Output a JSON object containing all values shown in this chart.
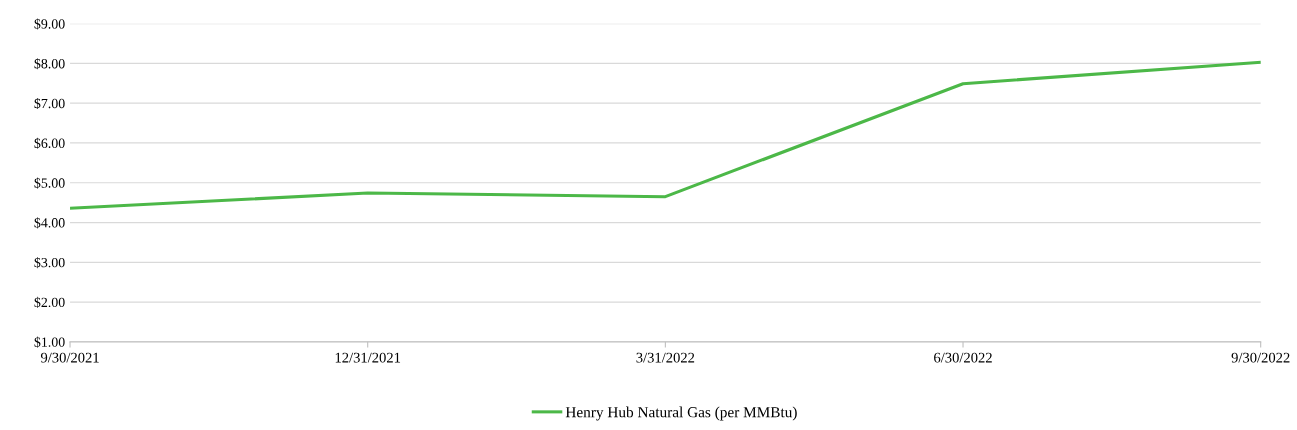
{
  "chart_data": {
    "type": "line",
    "categories": [
      "9/30/2021",
      "12/31/2021",
      "3/31/2022",
      "6/30/2022",
      "9/30/2022"
    ],
    "series": [
      {
        "name": "Henry Hub Natural Gas (per MMBtu)",
        "color": "#4cb848",
        "values": [
          4.36,
          4.74,
          4.65,
          7.49,
          8.03
        ]
      }
    ],
    "ylim": [
      1,
      9
    ],
    "yticks": [
      {
        "value": 1,
        "label": "$1.00"
      },
      {
        "value": 2,
        "label": "$2.00"
      },
      {
        "value": 3,
        "label": "$3.00"
      },
      {
        "value": 4,
        "label": "$4.00"
      },
      {
        "value": 5,
        "label": "$5.00"
      },
      {
        "value": 6,
        "label": "$6.00"
      },
      {
        "value": 7,
        "label": "$7.00"
      },
      {
        "value": 8,
        "label": "$8.00"
      },
      {
        "value": 9,
        "label": "$9.00"
      }
    ],
    "grid": "y",
    "legend": "bottom",
    "marker": "none",
    "line_style": "solid"
  }
}
